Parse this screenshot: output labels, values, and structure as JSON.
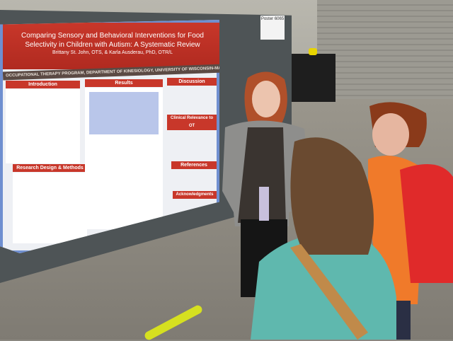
{
  "scene": {
    "description_type": "photo",
    "colors": {
      "poster_header": "#c8372a",
      "poster_border": "#6f8fd0",
      "board": "#4e5456",
      "orange_jacket": "#f07a2a",
      "teal_sweater": "#5fb8ae"
    }
  },
  "sign": {
    "label": "Poster 6065"
  },
  "poster": {
    "title": "Comparing Sensory and Behavioral Interventions for Food Selectivity in Children with Autism: A Systematic Review",
    "authors": "Brittany St. John, OTS, & Karla Ausderau, PhD, OTR/L",
    "department": "OCCUPATIONAL THERAPY PROGRAM, DEPARTMENT OF KINESIOLOGY, UNIVERSITY OF WISCONSIN-MADISON",
    "sections": {
      "introduction": "Introduction",
      "methods": "Research Design & Methods",
      "results": "Results",
      "discussion": "Discussion",
      "clinical": "Clinical Relevance to OT",
      "references": "References",
      "acknowledgments": "Acknowledgments"
    }
  }
}
